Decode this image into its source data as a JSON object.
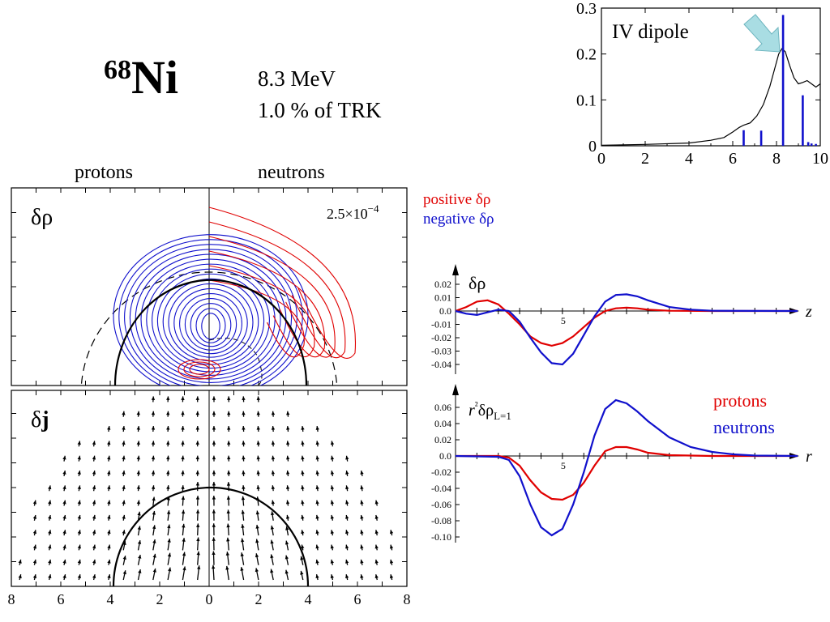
{
  "nucleus": {
    "mass_number": "68",
    "symbol": "Ni"
  },
  "state": {
    "energy": "8.3 MeV",
    "strength": "1.0 % of TRK"
  },
  "headers": {
    "protons": "protons",
    "neutrons": "neutrons"
  },
  "panels": {
    "density_label": "δρ",
    "current_label_symbol": "δ",
    "current_label_bold": "j",
    "contour_step_base": "2.5×10",
    "contour_step_exp": "−4"
  },
  "legend": {
    "positive": "positive δρ",
    "negative": "negative δρ",
    "protons": "protons",
    "neutrons": "neutrons",
    "colors": {
      "positive": "#e00000",
      "negative": "#1010cc",
      "protons": "#e00000",
      "neutrons": "#1010cc"
    }
  },
  "chart_data": [
    {
      "id": "strength",
      "type": "line",
      "annotation": "IV dipole",
      "xlim": [
        0,
        10
      ],
      "ylim": [
        0,
        0.3
      ],
      "x_ticks": [
        0,
        2,
        4,
        6,
        8,
        10
      ],
      "y_ticks": [
        "0",
        "0.1",
        "0.2",
        "0.3"
      ],
      "series": [
        {
          "kind": "curve",
          "color": "#000000",
          "points": [
            [
              0,
              0.001
            ],
            [
              2,
              0.003
            ],
            [
              4,
              0.006
            ],
            [
              5,
              0.012
            ],
            [
              5.6,
              0.018
            ],
            [
              6.0,
              0.03
            ],
            [
              6.3,
              0.04
            ],
            [
              6.5,
              0.045
            ],
            [
              6.8,
              0.05
            ],
            [
              7.1,
              0.065
            ],
            [
              7.4,
              0.09
            ],
            [
              7.7,
              0.13
            ],
            [
              7.9,
              0.165
            ],
            [
              8.1,
              0.2
            ],
            [
              8.25,
              0.212
            ],
            [
              8.4,
              0.205
            ],
            [
              8.6,
              0.175
            ],
            [
              8.8,
              0.148
            ],
            [
              9.0,
              0.135
            ],
            [
              9.2,
              0.138
            ],
            [
              9.4,
              0.142
            ],
            [
              9.6,
              0.135
            ],
            [
              9.8,
              0.128
            ],
            [
              10,
              0.135
            ]
          ]
        },
        {
          "kind": "sticks",
          "color": "#1010cc",
          "points": [
            [
              6.5,
              0.034
            ],
            [
              7.3,
              0.033
            ],
            [
              8.3,
              0.285
            ],
            [
              9.2,
              0.11
            ],
            [
              9.45,
              0.008
            ],
            [
              9.6,
              0.005
            ],
            [
              9.8,
              0.004
            ]
          ]
        }
      ]
    },
    {
      "id": "transition_density",
      "type": "line",
      "ylabel": "δρ",
      "xlabel": "z",
      "xlim": [
        0,
        16
      ],
      "ylim": [
        -0.045,
        0.025
      ],
      "x_tick_labels": [
        "5"
      ],
      "y_ticks": [
        "0.02",
        "0.01",
        "0.0",
        "-0.01",
        "-0.02",
        "-0.03",
        "-0.04"
      ],
      "series": [
        {
          "name": "protons",
          "color": "#e00000",
          "points": [
            [
              0,
              0
            ],
            [
              0.5,
              0.003
            ],
            [
              1,
              0.007
            ],
            [
              1.5,
              0.008
            ],
            [
              2,
              0.005
            ],
            [
              2.5,
              -0.002
            ],
            [
              3,
              -0.01
            ],
            [
              3.5,
              -0.019
            ],
            [
              4,
              -0.024
            ],
            [
              4.5,
              -0.026
            ],
            [
              5,
              -0.024
            ],
            [
              5.5,
              -0.019
            ],
            [
              6,
              -0.012
            ],
            [
              6.5,
              -0.005
            ],
            [
              7,
              0
            ],
            [
              7.5,
              0.002
            ],
            [
              8,
              0.0025
            ],
            [
              8.5,
              0.002
            ],
            [
              9,
              0.001
            ],
            [
              10,
              0.0002
            ],
            [
              12,
              0
            ],
            [
              16,
              0
            ]
          ]
        },
        {
          "name": "neutrons",
          "color": "#1010cc",
          "points": [
            [
              0,
              0
            ],
            [
              0.5,
              -0.002
            ],
            [
              1,
              -0.003
            ],
            [
              1.5,
              -0.001
            ],
            [
              2,
              0.001
            ],
            [
              2.5,
              0
            ],
            [
              3,
              -0.008
            ],
            [
              3.5,
              -0.02
            ],
            [
              4,
              -0.031
            ],
            [
              4.5,
              -0.039
            ],
            [
              5,
              -0.04
            ],
            [
              5.5,
              -0.032
            ],
            [
              6,
              -0.018
            ],
            [
              6.5,
              -0.004
            ],
            [
              7,
              0.007
            ],
            [
              7.5,
              0.012
            ],
            [
              8,
              0.0125
            ],
            [
              8.5,
              0.011
            ],
            [
              9,
              0.008
            ],
            [
              10,
              0.003
            ],
            [
              11,
              0.001
            ],
            [
              12,
              0.0002
            ],
            [
              16,
              0
            ]
          ]
        }
      ]
    },
    {
      "id": "radial_L1",
      "type": "line",
      "ylabel": "r²δρL=1",
      "xlabel": "r",
      "xlim": [
        0,
        16
      ],
      "ylim": [
        -0.105,
        0.075
      ],
      "x_tick_labels": [
        "5"
      ],
      "y_ticks": [
        "0.06",
        "0.04",
        "0.02",
        "0.0",
        "-0.02",
        "-0.04",
        "-0.06",
        "-0.08",
        "-0.10"
      ],
      "series": [
        {
          "name": "protons",
          "color": "#e00000",
          "points": [
            [
              0,
              0
            ],
            [
              2,
              0
            ],
            [
              2.5,
              -0.002
            ],
            [
              3,
              -0.012
            ],
            [
              3.5,
              -0.03
            ],
            [
              4,
              -0.045
            ],
            [
              4.5,
              -0.053
            ],
            [
              5,
              -0.054
            ],
            [
              5.5,
              -0.048
            ],
            [
              6,
              -0.033
            ],
            [
              6.5,
              -0.012
            ],
            [
              7,
              0.006
            ],
            [
              7.5,
              0.011
            ],
            [
              8,
              0.011
            ],
            [
              8.5,
              0.008
            ],
            [
              9,
              0.004
            ],
            [
              10,
              0.001
            ],
            [
              12,
              0
            ],
            [
              16,
              0
            ]
          ]
        },
        {
          "name": "neutrons",
          "color": "#1010cc",
          "points": [
            [
              0,
              0
            ],
            [
              2,
              -0.001
            ],
            [
              2.5,
              -0.005
            ],
            [
              3,
              -0.025
            ],
            [
              3.5,
              -0.06
            ],
            [
              4,
              -0.088
            ],
            [
              4.5,
              -0.098
            ],
            [
              5,
              -0.09
            ],
            [
              5.5,
              -0.06
            ],
            [
              6,
              -0.02
            ],
            [
              6.5,
              0.025
            ],
            [
              7,
              0.058
            ],
            [
              7.5,
              0.069
            ],
            [
              8,
              0.065
            ],
            [
              8.5,
              0.055
            ],
            [
              9,
              0.043
            ],
            [
              10,
              0.023
            ],
            [
              11,
              0.011
            ],
            [
              12,
              0.005
            ],
            [
              13,
              0.002
            ],
            [
              14,
              0.0005
            ],
            [
              16,
              0
            ]
          ]
        }
      ]
    },
    {
      "id": "map_axis",
      "type": "scatter",
      "x_tick_labels": [
        "8",
        "6",
        "4",
        "2",
        "0",
        "2",
        "4",
        "6",
        "8"
      ]
    }
  ]
}
